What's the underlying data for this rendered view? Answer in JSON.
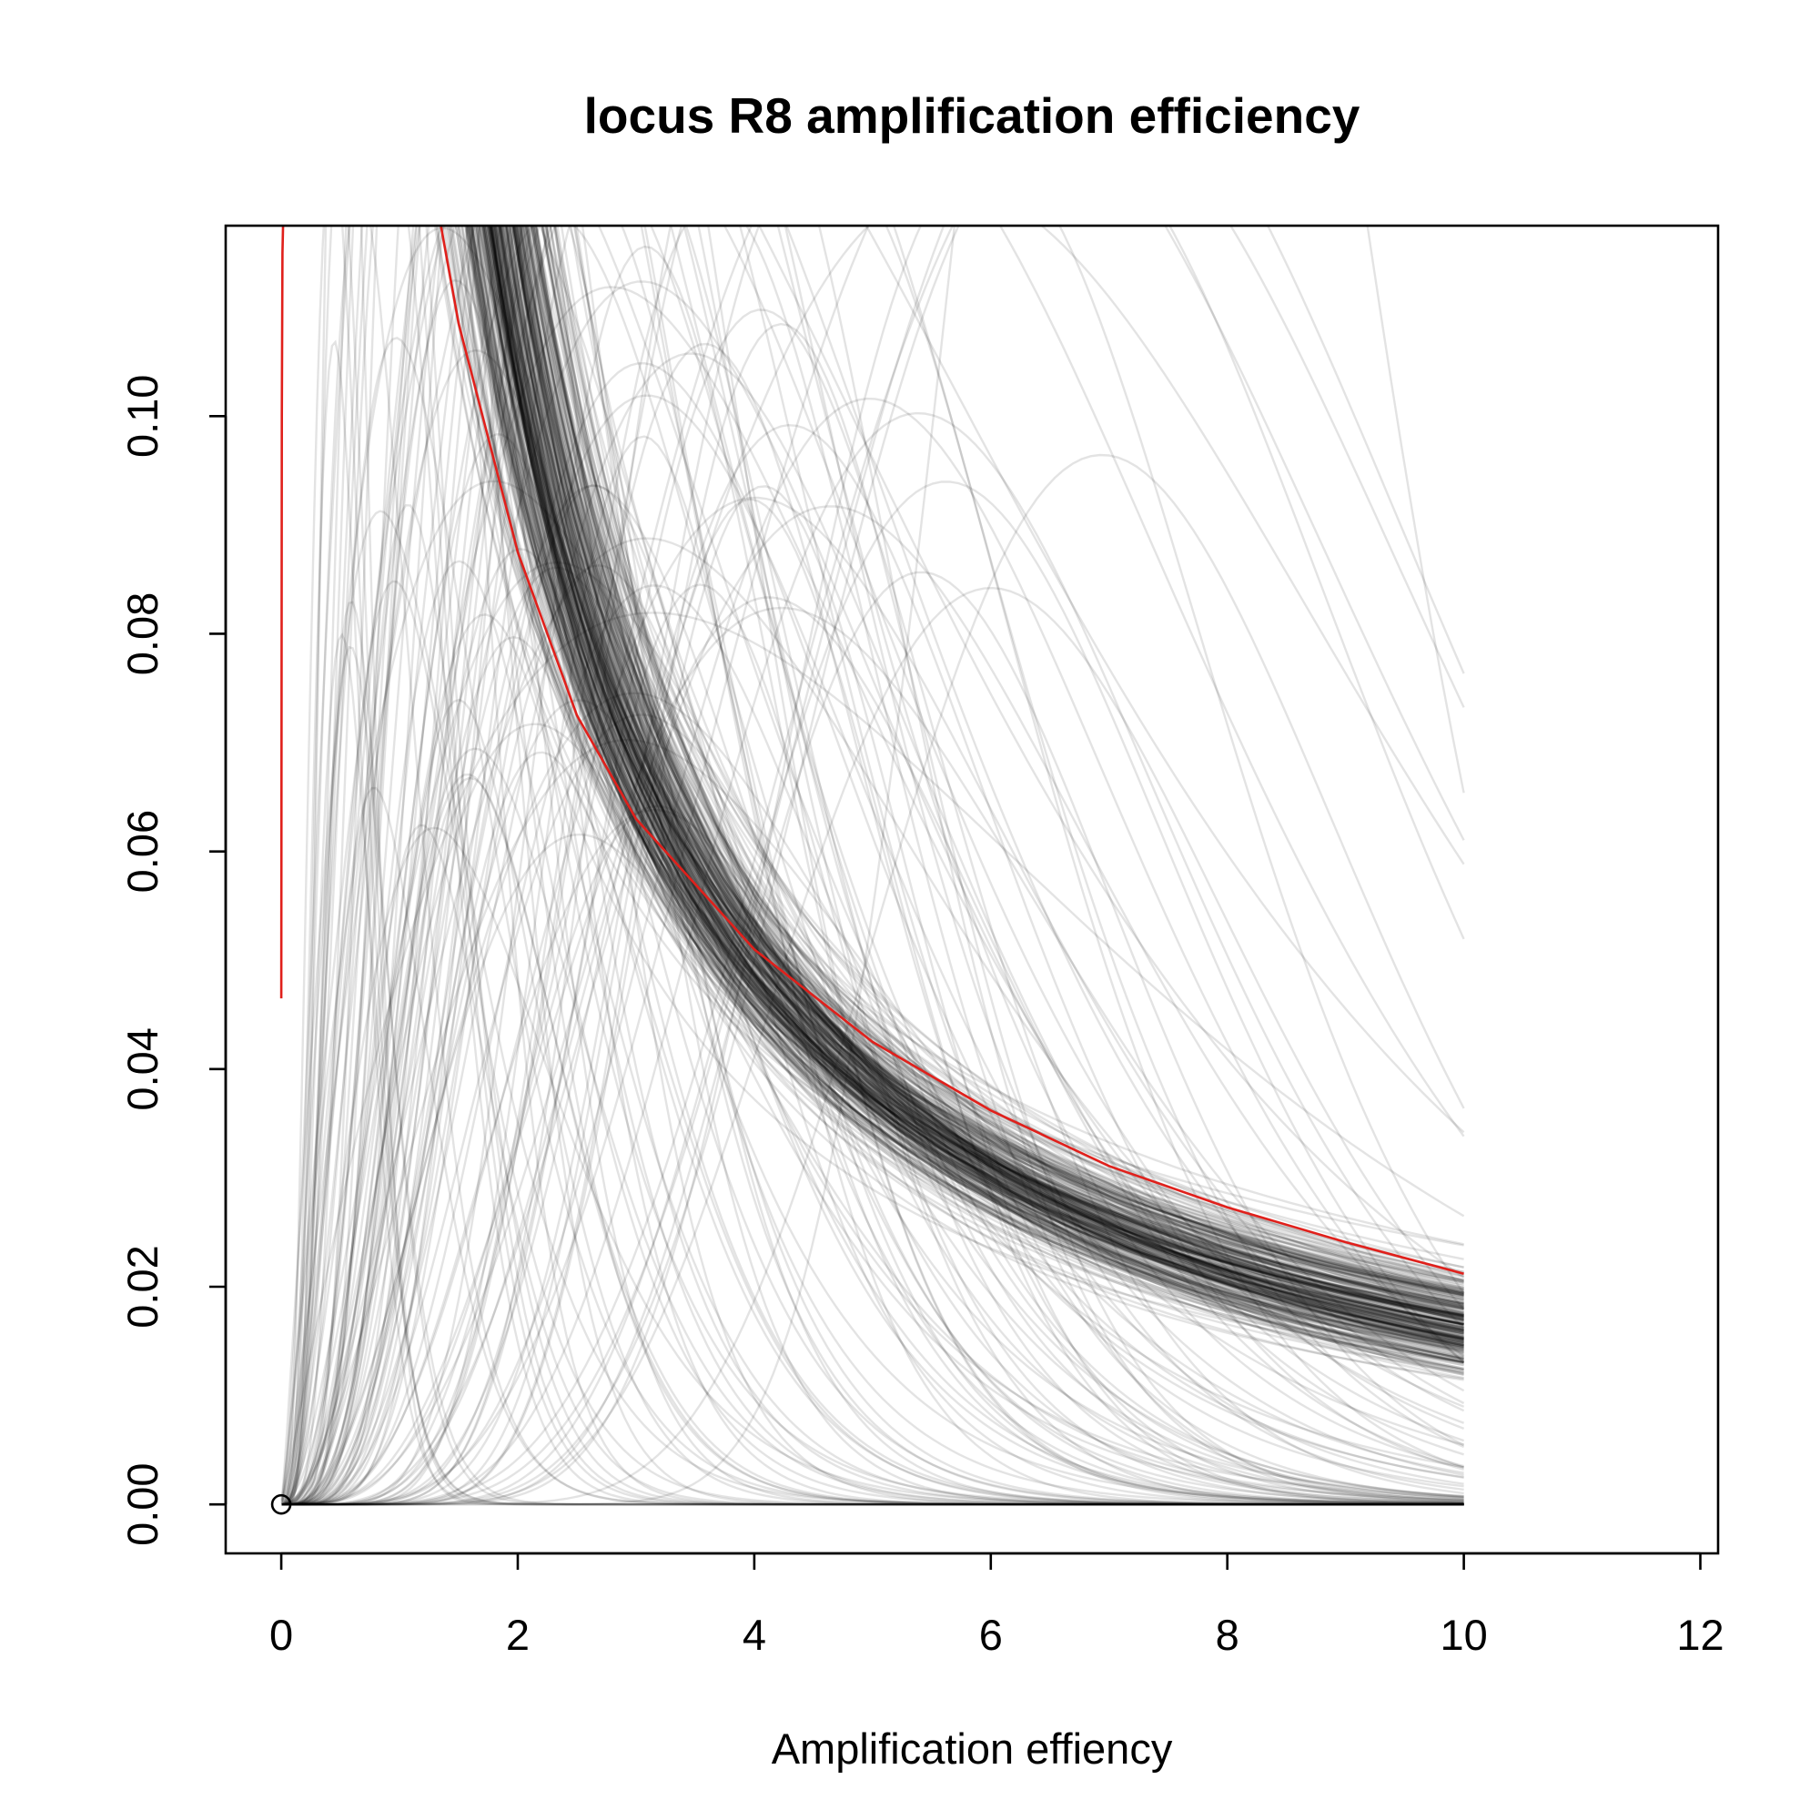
{
  "chart_data": {
    "type": "line",
    "title": "locus R8 amplification efficiency",
    "xlabel": "Amplification effiency",
    "ylabel": "",
    "xlim": [
      -0.47,
      12.15
    ],
    "ylim": [
      -0.0045,
      0.1175
    ],
    "x_ticks": [
      0,
      2,
      4,
      6,
      8,
      10,
      12
    ],
    "x_tick_labels": [
      "0",
      "2",
      "4",
      "6",
      "8",
      "10",
      "12"
    ],
    "y_ticks": [
      0.0,
      0.02,
      0.04,
      0.06,
      0.08,
      0.1
    ],
    "y_tick_labels": [
      "0.00",
      "0.02",
      "0.04",
      "0.06",
      "0.08",
      "0.10"
    ],
    "grid": false,
    "legend": "none",
    "x_range_of_curves": [
      0,
      10
    ],
    "highlighted_series": {
      "color": "#e0201b",
      "x": [
        0.0,
        0.005,
        0.01,
        0.02,
        1.35,
        1.5,
        2.0,
        2.5,
        3.0,
        4.0,
        5.0,
        6.0,
        7.0,
        8.0,
        9.0,
        10.0
      ],
      "y": [
        0.0465,
        0.1,
        0.115,
        0.12,
        0.1175,
        0.1085,
        0.0875,
        0.0725,
        0.063,
        0.051,
        0.0425,
        0.0362,
        0.0311,
        0.0273,
        0.0241,
        0.0212
      ]
    },
    "sample_series_color": "rgba(0,0,0,0.11)",
    "sample_series_count": 420,
    "origin_marker": {
      "x": 0,
      "y": 0
    }
  }
}
